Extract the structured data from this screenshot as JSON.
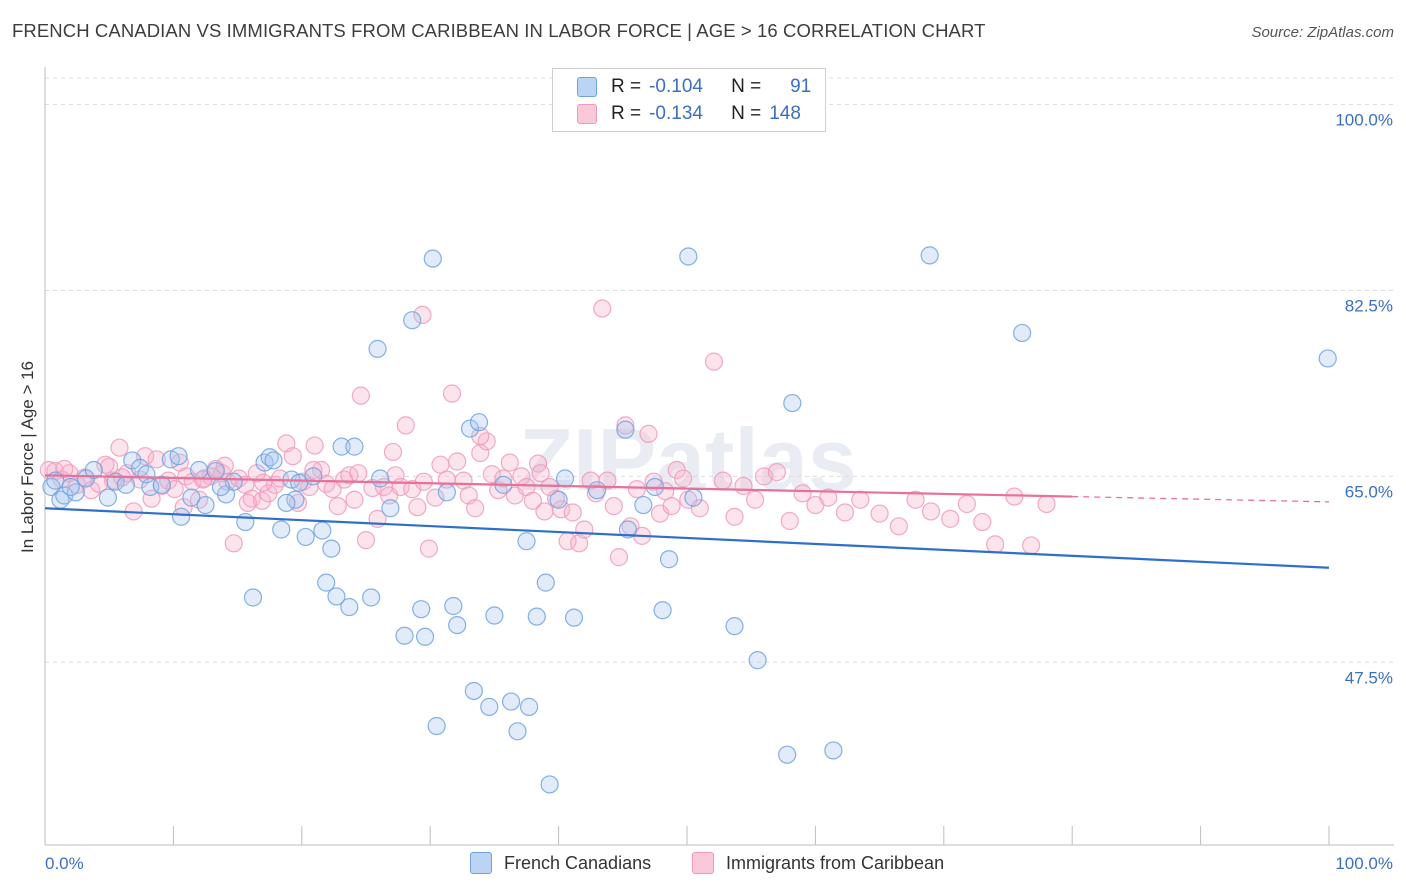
{
  "header": {
    "title": "FRENCH CANADIAN VS IMMIGRANTS FROM CARIBBEAN IN LABOR FORCE | AGE > 16 CORRELATION CHART",
    "source": "Source: ZipAtlas.com"
  },
  "legend": {
    "row1": {
      "r_label": "R =",
      "r_value": "-0.104",
      "n_label": "N =",
      "n_value": "91"
    },
    "row2": {
      "r_label": "R =",
      "r_value": "-0.134",
      "n_label": "N =",
      "n_value": "148"
    }
  },
  "bottom_legend": {
    "series1": "French Canadians",
    "series2": "Immigrants from Caribbean"
  },
  "watermark": "ZIPatlas",
  "colors": {
    "blue": "#6fa3e0",
    "blue_line": "#2f6fcc",
    "pink": "#f19ab8",
    "pink_line": "#e8709a",
    "tick_text": "#3a6fc4",
    "grid": "#dcdcdc"
  },
  "chart_data": {
    "type": "scatter",
    "xlabel": "",
    "ylabel": "In Labor Force | Age > 16",
    "xlim": [
      0,
      100
    ],
    "ylim": [
      30.3,
      102.5
    ],
    "x_tick_labels": [
      "0.0%",
      "100.0%"
    ],
    "y_ticks": [
      47.5,
      65.0,
      82.5,
      100.0
    ],
    "y_tick_labels": [
      "47.5%",
      "65.0%",
      "82.5%",
      "100.0%"
    ],
    "grid": "horizontal dashed",
    "series": [
      {
        "name": "French Canadians",
        "color": "#6fa3e0",
        "trend": {
          "x": [
            0,
            100
          ],
          "y": [
            62.0,
            56.4
          ]
        },
        "points": [
          [
            0.5,
            64.0
          ],
          [
            1.2,
            62.8
          ],
          [
            1.5,
            63.2
          ],
          [
            2.4,
            63.5
          ],
          [
            3.2,
            64.8
          ],
          [
            3.8,
            65.6
          ],
          [
            4.9,
            63.0
          ],
          [
            5.5,
            64.5
          ],
          [
            6.3,
            64.2
          ],
          [
            6.8,
            66.5
          ],
          [
            7.4,
            65.8
          ],
          [
            8.2,
            64.0
          ],
          [
            9.1,
            64.2
          ],
          [
            9.8,
            66.6
          ],
          [
            10.4,
            66.9
          ],
          [
            10.6,
            61.2
          ],
          [
            11.4,
            63.0
          ],
          [
            12.0,
            65.6
          ],
          [
            12.5,
            62.3
          ],
          [
            13.3,
            65.5
          ],
          [
            14.1,
            63.3
          ],
          [
            14.7,
            64.5
          ],
          [
            15.6,
            60.7
          ],
          [
            16.2,
            53.6
          ],
          [
            17.1,
            66.3
          ],
          [
            17.5,
            66.8
          ],
          [
            17.8,
            66.5
          ],
          [
            18.4,
            60.0
          ],
          [
            19.2,
            64.7
          ],
          [
            19.5,
            62.8
          ],
          [
            19.8,
            64.4
          ],
          [
            20.3,
            59.3
          ],
          [
            20.9,
            65.0
          ],
          [
            21.6,
            59.9
          ],
          [
            21.9,
            55.0
          ],
          [
            22.3,
            58.2
          ],
          [
            22.7,
            53.7
          ],
          [
            23.1,
            67.8
          ],
          [
            23.7,
            52.7
          ],
          [
            24.1,
            67.8
          ],
          [
            25.4,
            53.6
          ],
          [
            25.9,
            77.0
          ],
          [
            26.9,
            62.0
          ],
          [
            28.6,
            79.7
          ],
          [
            28.0,
            50.0
          ],
          [
            29.6,
            49.9
          ],
          [
            30.5,
            41.5
          ],
          [
            30.2,
            85.5
          ],
          [
            29.3,
            52.5
          ],
          [
            31.8,
            52.8
          ],
          [
            32.1,
            51.0
          ],
          [
            33.4,
            44.8
          ],
          [
            33.1,
            69.5
          ],
          [
            33.8,
            70.1
          ],
          [
            34.6,
            43.3
          ],
          [
            35.0,
            51.9
          ],
          [
            36.3,
            43.8
          ],
          [
            36.8,
            41.0
          ],
          [
            37.7,
            43.3
          ],
          [
            37.5,
            58.9
          ],
          [
            38.3,
            51.8
          ],
          [
            39.0,
            55.0
          ],
          [
            39.3,
            36.0
          ],
          [
            40.0,
            62.8
          ],
          [
            41.2,
            51.7
          ],
          [
            45.2,
            69.4
          ],
          [
            45.4,
            60.0
          ],
          [
            46.6,
            62.3
          ],
          [
            48.1,
            52.4
          ],
          [
            48.6,
            57.2
          ],
          [
            50.1,
            85.7
          ],
          [
            50.5,
            63.0
          ],
          [
            53.7,
            50.9
          ],
          [
            55.5,
            47.7
          ],
          [
            57.8,
            38.8
          ],
          [
            58.2,
            71.9
          ],
          [
            61.4,
            39.2
          ],
          [
            68.9,
            85.8
          ],
          [
            76.1,
            78.5
          ],
          [
            99.9,
            76.1
          ],
          [
            0.8,
            64.6
          ],
          [
            2.0,
            64.0
          ],
          [
            7.9,
            65.2
          ],
          [
            13.7,
            64.0
          ],
          [
            18.8,
            62.5
          ],
          [
            26.1,
            64.8
          ],
          [
            31.3,
            63.5
          ],
          [
            35.7,
            64.2
          ],
          [
            40.5,
            64.8
          ],
          [
            43.0,
            63.7
          ],
          [
            47.5,
            64.0
          ]
        ]
      },
      {
        "name": "Immigrants from Caribbean",
        "color": "#f19ab8",
        "trend": {
          "x": [
            0,
            80
          ],
          "y": [
            65.1,
            63.1
          ]
        },
        "trend_dashed": {
          "x": [
            80,
            100
          ],
          "y": [
            63.1,
            62.6
          ]
        },
        "points": [
          [
            0.3,
            65.6
          ],
          [
            0.8,
            65.5
          ],
          [
            1.3,
            64.7
          ],
          [
            1.9,
            65.3
          ],
          [
            2.5,
            64.2
          ],
          [
            3.1,
            64.9
          ],
          [
            3.6,
            63.7
          ],
          [
            4.2,
            64.3
          ],
          [
            4.7,
            66.1
          ],
          [
            5.3,
            64.6
          ],
          [
            5.8,
            67.7
          ],
          [
            6.4,
            65.3
          ],
          [
            6.9,
            61.7
          ],
          [
            7.4,
            64.7
          ],
          [
            7.8,
            66.9
          ],
          [
            8.3,
            62.9
          ],
          [
            8.7,
            66.6
          ],
          [
            9.1,
            64.1
          ],
          [
            9.6,
            64.6
          ],
          [
            10.1,
            63.8
          ],
          [
            10.5,
            66.3
          ],
          [
            11.0,
            65.0
          ],
          [
            11.5,
            64.5
          ],
          [
            12.0,
            62.8
          ],
          [
            12.4,
            64.8
          ],
          [
            12.9,
            65.0
          ],
          [
            13.3,
            65.7
          ],
          [
            13.8,
            65.3
          ],
          [
            14.2,
            64.5
          ],
          [
            14.7,
            58.7
          ],
          [
            15.1,
            64.8
          ],
          [
            15.6,
            64.2
          ],
          [
            16.1,
            62.9
          ],
          [
            16.5,
            65.3
          ],
          [
            16.9,
            62.7
          ],
          [
            17.4,
            63.4
          ],
          [
            17.9,
            64.2
          ],
          [
            18.3,
            64.8
          ],
          [
            18.8,
            68.1
          ],
          [
            19.3,
            66.9
          ],
          [
            19.7,
            62.5
          ],
          [
            20.1,
            64.5
          ],
          [
            20.6,
            64.0
          ],
          [
            21.0,
            67.9
          ],
          [
            21.5,
            65.6
          ],
          [
            21.9,
            64.3
          ],
          [
            22.4,
            63.8
          ],
          [
            22.8,
            62.2
          ],
          [
            23.3,
            64.7
          ],
          [
            23.7,
            65.1
          ],
          [
            24.1,
            62.8
          ],
          [
            24.6,
            72.6
          ],
          [
            25.0,
            59.0
          ],
          [
            25.5,
            63.9
          ],
          [
            25.9,
            61.0
          ],
          [
            26.4,
            64.0
          ],
          [
            26.8,
            63.2
          ],
          [
            27.3,
            65.1
          ],
          [
            27.7,
            64.0
          ],
          [
            28.1,
            69.8
          ],
          [
            28.6,
            63.8
          ],
          [
            29.0,
            62.1
          ],
          [
            29.5,
            64.5
          ],
          [
            29.9,
            58.2
          ],
          [
            30.4,
            63.0
          ],
          [
            30.8,
            66.1
          ],
          [
            31.3,
            64.7
          ],
          [
            31.7,
            72.8
          ],
          [
            32.1,
            66.4
          ],
          [
            32.6,
            64.6
          ],
          [
            33.0,
            63.2
          ],
          [
            33.5,
            62.0
          ],
          [
            33.9,
            67.2
          ],
          [
            34.4,
            68.3
          ],
          [
            34.8,
            65.2
          ],
          [
            35.3,
            63.7
          ],
          [
            35.7,
            64.8
          ],
          [
            36.2,
            66.3
          ],
          [
            36.6,
            63.2
          ],
          [
            37.1,
            65.0
          ],
          [
            37.5,
            64.0
          ],
          [
            38.0,
            62.7
          ],
          [
            38.4,
            66.2
          ],
          [
            38.9,
            61.7
          ],
          [
            39.3,
            64.0
          ],
          [
            39.8,
            62.9
          ],
          [
            40.2,
            61.9
          ],
          [
            40.7,
            58.9
          ],
          [
            41.1,
            61.6
          ],
          [
            41.6,
            58.7
          ],
          [
            42.0,
            60.0
          ],
          [
            42.5,
            64.6
          ],
          [
            42.9,
            63.4
          ],
          [
            43.4,
            80.8
          ],
          [
            43.8,
            64.6
          ],
          [
            44.3,
            62.2
          ],
          [
            44.7,
            57.4
          ],
          [
            45.2,
            69.8
          ],
          [
            45.6,
            60.3
          ],
          [
            46.1,
            63.8
          ],
          [
            46.5,
            59.4
          ],
          [
            47.0,
            69.0
          ],
          [
            47.4,
            64.5
          ],
          [
            47.9,
            61.5
          ],
          [
            48.3,
            63.6
          ],
          [
            48.8,
            62.2
          ],
          [
            49.2,
            65.6
          ],
          [
            49.7,
            64.8
          ],
          [
            50.1,
            62.8
          ],
          [
            51.0,
            62.0
          ],
          [
            52.1,
            75.8
          ],
          [
            52.8,
            64.6
          ],
          [
            53.7,
            61.2
          ],
          [
            54.4,
            64.1
          ],
          [
            55.3,
            62.8
          ],
          [
            56.0,
            65.0
          ],
          [
            57.0,
            65.4
          ],
          [
            58.0,
            60.8
          ],
          [
            59.0,
            63.4
          ],
          [
            60.0,
            62.3
          ],
          [
            61.0,
            63.0
          ],
          [
            62.3,
            61.6
          ],
          [
            63.5,
            62.8
          ],
          [
            65.0,
            61.5
          ],
          [
            66.5,
            60.3
          ],
          [
            67.8,
            62.8
          ],
          [
            69.0,
            61.7
          ],
          [
            70.5,
            61.0
          ],
          [
            71.8,
            62.4
          ],
          [
            73.0,
            60.7
          ],
          [
            74.0,
            58.6
          ],
          [
            75.5,
            63.1
          ],
          [
            76.8,
            58.5
          ],
          [
            78.0,
            62.4
          ],
          [
            29.4,
            80.2
          ],
          [
            5.0,
            65.9
          ],
          [
            10.8,
            62.1
          ],
          [
            14.0,
            66.0
          ],
          [
            17.0,
            64.4
          ],
          [
            20.9,
            65.6
          ],
          [
            24.4,
            65.3
          ],
          [
            27.1,
            67.3
          ],
          [
            33.9,
            68.8
          ],
          [
            38.6,
            65.3
          ],
          [
            1.5,
            65.7
          ],
          [
            6.0,
            64.9
          ],
          [
            12.3,
            64.7
          ],
          [
            15.8,
            62.5
          ]
        ]
      }
    ]
  }
}
